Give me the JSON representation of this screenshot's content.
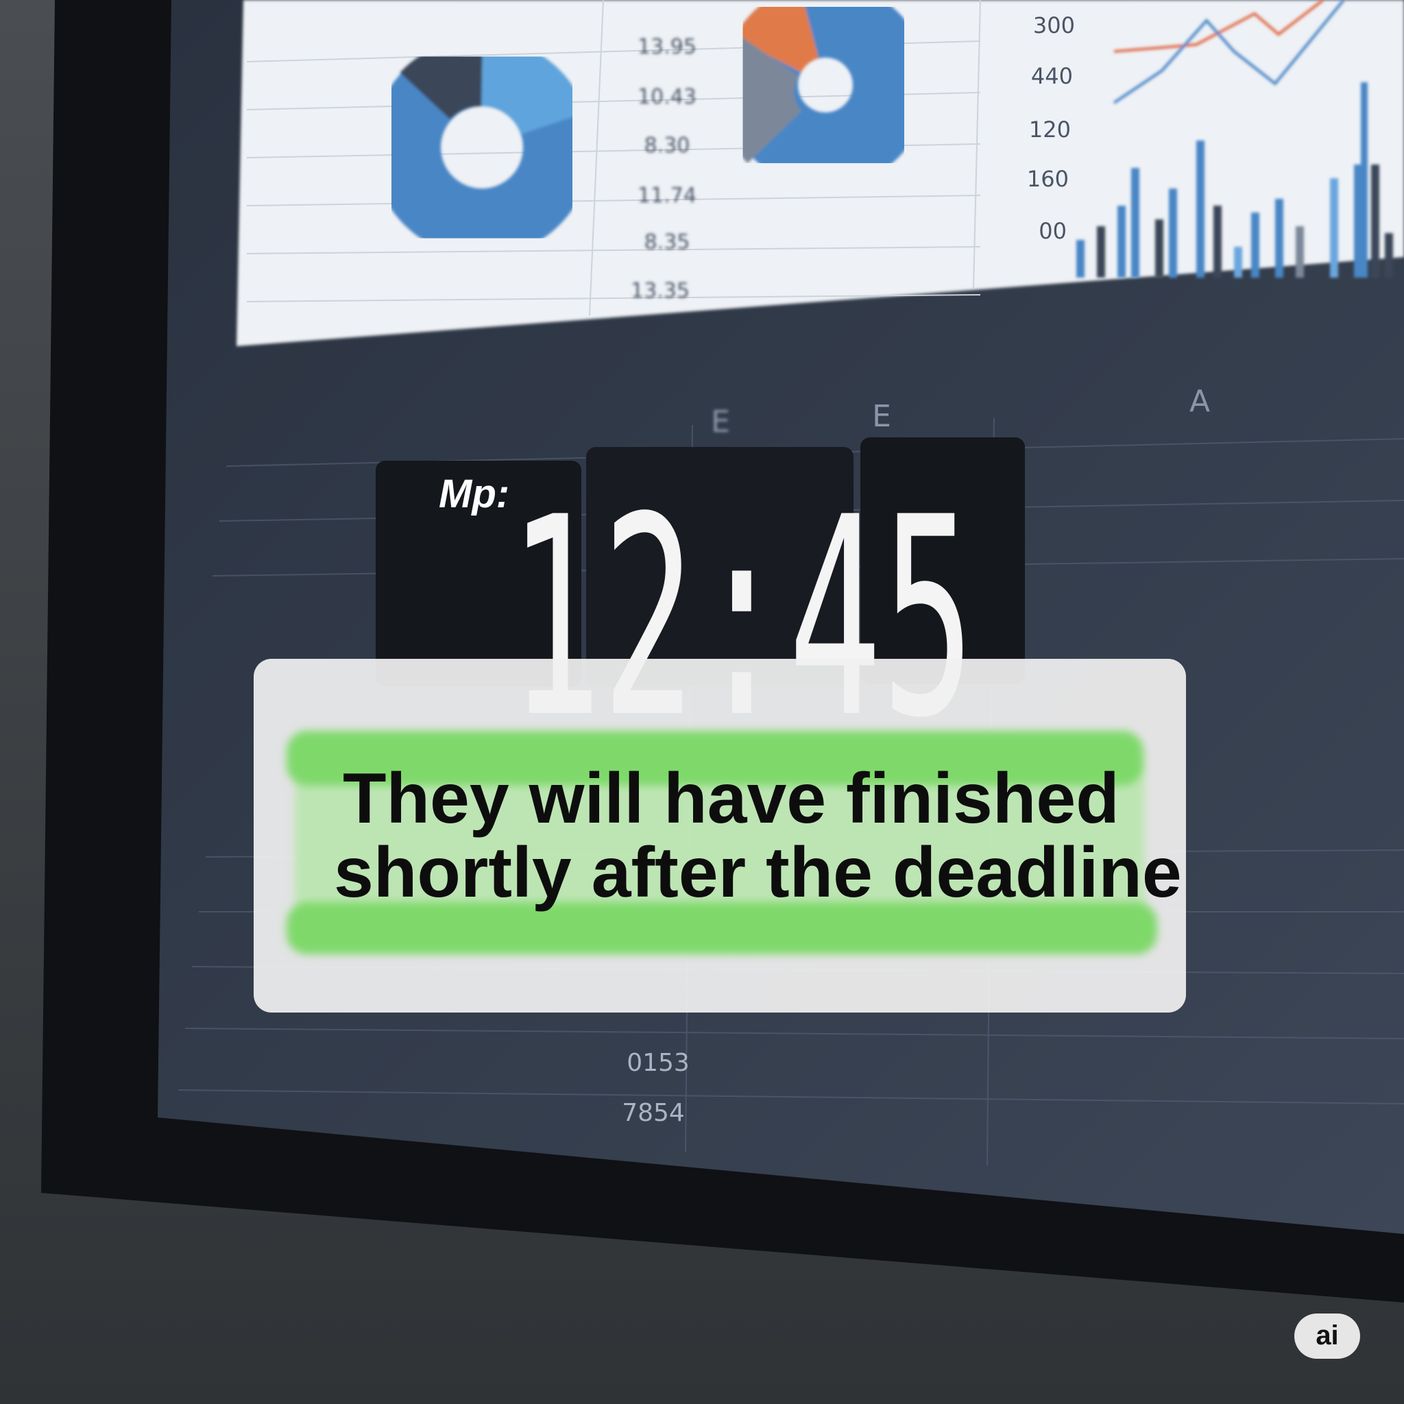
{
  "screen": {
    "table_values": [
      "13.95",
      "10.43",
      "8.30",
      "11.74",
      "8.35",
      "13.35"
    ],
    "axis_labels": [
      "300",
      "440",
      "120",
      "160",
      "00"
    ],
    "column_headers": [
      "E",
      "E",
      "A"
    ],
    "clock_label": "Mp:",
    "clock_time": "12:45",
    "lower_values": [
      "0153",
      "7854"
    ]
  },
  "caption": {
    "lines": [
      "They will have finished",
      "shortly after the deadline"
    ]
  },
  "badge": "ai"
}
